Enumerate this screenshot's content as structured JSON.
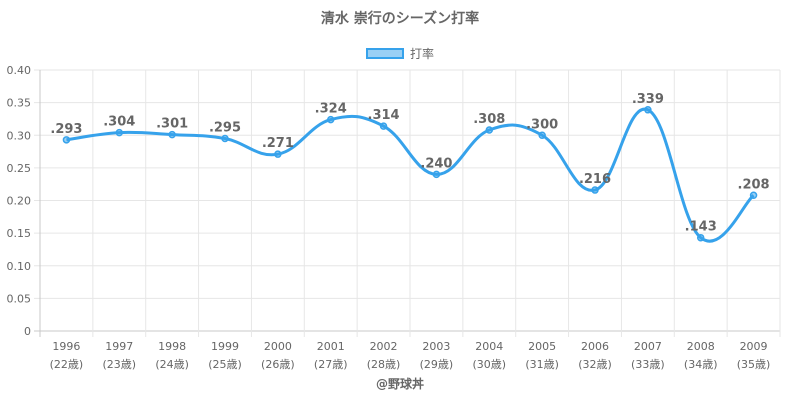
{
  "chart_data": {
    "type": "line",
    "title": "清水 崇行のシーズン打率",
    "credit": "@野球丼",
    "categories": [
      "1996",
      "1997",
      "1998",
      "1999",
      "2000",
      "2001",
      "2002",
      "2003",
      "2004",
      "2005",
      "2006",
      "2007",
      "2008",
      "2009"
    ],
    "ages": [
      "(22歳)",
      "(23歳)",
      "(24歳)",
      "(25歳)",
      "(26歳)",
      "(27歳)",
      "(28歳)",
      "(29歳)",
      "(30歳)",
      "(31歳)",
      "(32歳)",
      "(33歳)",
      "(34歳)",
      "(35歳)"
    ],
    "series": [
      {
        "name": "打率",
        "color": "#36a2eb",
        "values": [
          0.293,
          0.304,
          0.301,
          0.295,
          0.271,
          0.324,
          0.314,
          0.24,
          0.308,
          0.3,
          0.216,
          0.339,
          0.143,
          0.208
        ],
        "labels": [
          ".293",
          ".304",
          ".301",
          ".295",
          ".271",
          ".324",
          ".314",
          ".240",
          ".308",
          ".300",
          ".216",
          ".339",
          ".143",
          ".208"
        ]
      }
    ],
    "ylim": [
      0,
      0.4
    ],
    "yticks": [
      "0",
      "0.05",
      "0.10",
      "0.15",
      "0.20",
      "0.25",
      "0.30",
      "0.35",
      "0.40"
    ],
    "grid": true,
    "legend": "top-center"
  }
}
